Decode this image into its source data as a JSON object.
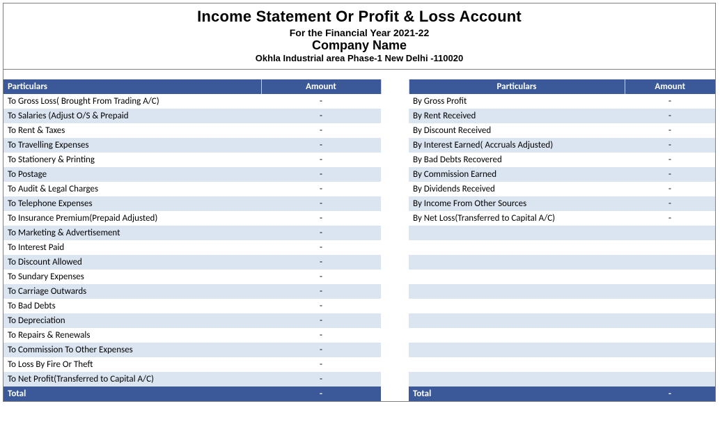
{
  "colors": {
    "header_bg": "#3b5998",
    "header_fg": "#ffffff",
    "band_light": "#dbe5f1",
    "band_white": "#ffffff",
    "border": "#7f7f7f"
  },
  "header": {
    "title": "Income Statement Or Profit & Loss Account",
    "period": "For the Financial Year 2021-22",
    "company": "Company Name",
    "address": "Okhla Industrial area Phase-1 New Delhi -110020"
  },
  "columns": {
    "left_particulars": "Particulars",
    "left_amount": "Amount",
    "right_particulars": "Particulars",
    "right_amount": "Amount"
  },
  "left": [
    {
      "label": "To Gross Loss( Brought From Trading A/C)",
      "amount": "-"
    },
    {
      "label": "To Salaries (Adjust O/S & Prepaid",
      "amount": "-"
    },
    {
      "label": "To Rent & Taxes",
      "amount": "-"
    },
    {
      "label": "To Travelling Expenses",
      "amount": "-"
    },
    {
      "label": "To Stationery & Printing",
      "amount": "-"
    },
    {
      "label": "To Postage",
      "amount": "-"
    },
    {
      "label": "To Audit & Legal Charges",
      "amount": "-"
    },
    {
      "label": "To Telephone Expenses",
      "amount": "-"
    },
    {
      "label": "To Insurance Premium(Prepaid Adjusted)",
      "amount": "-"
    },
    {
      "label": "To Marketing & Advertisement",
      "amount": "-"
    },
    {
      "label": "To Interest Paid",
      "amount": "-"
    },
    {
      "label": "To Discount Allowed",
      "amount": "-"
    },
    {
      "label": "To Sundary Expenses",
      "amount": "-"
    },
    {
      "label": "To Carriage Outwards",
      "amount": "-"
    },
    {
      "label": "To Bad Debts",
      "amount": "-"
    },
    {
      "label": "To Depreciation",
      "amount": "-"
    },
    {
      "label": "To Repairs & Renewals",
      "amount": "-"
    },
    {
      "label": "To Commission To Other Expenses",
      "amount": "-"
    },
    {
      "label": "To Loss By Fire Or Theft",
      "amount": "-"
    },
    {
      "label": "To Net Profit(Transferred to Capital A/C)",
      "amount": "-"
    }
  ],
  "right": [
    {
      "label": "By Gross Profit",
      "amount": "-"
    },
    {
      "label": "By Rent Received",
      "amount": "-"
    },
    {
      "label": "By Discount Received",
      "amount": "-"
    },
    {
      "label": "By Interest Earned( Accruals Adjusted)",
      "amount": "-"
    },
    {
      "label": "By Bad Debts Recovered",
      "amount": "-"
    },
    {
      "label": "By Commission Earned",
      "amount": "-"
    },
    {
      "label": "By Dividends Received",
      "amount": "-"
    },
    {
      "label": "By Income From Other Sources",
      "amount": "-"
    },
    {
      "label": "By Net Loss(Transferred to Capital A/C)",
      "amount": "-"
    }
  ],
  "totals": {
    "left_label": "Total",
    "left_amount": "-",
    "right_label": "Total",
    "right_amount": "-"
  },
  "row_count": 20
}
